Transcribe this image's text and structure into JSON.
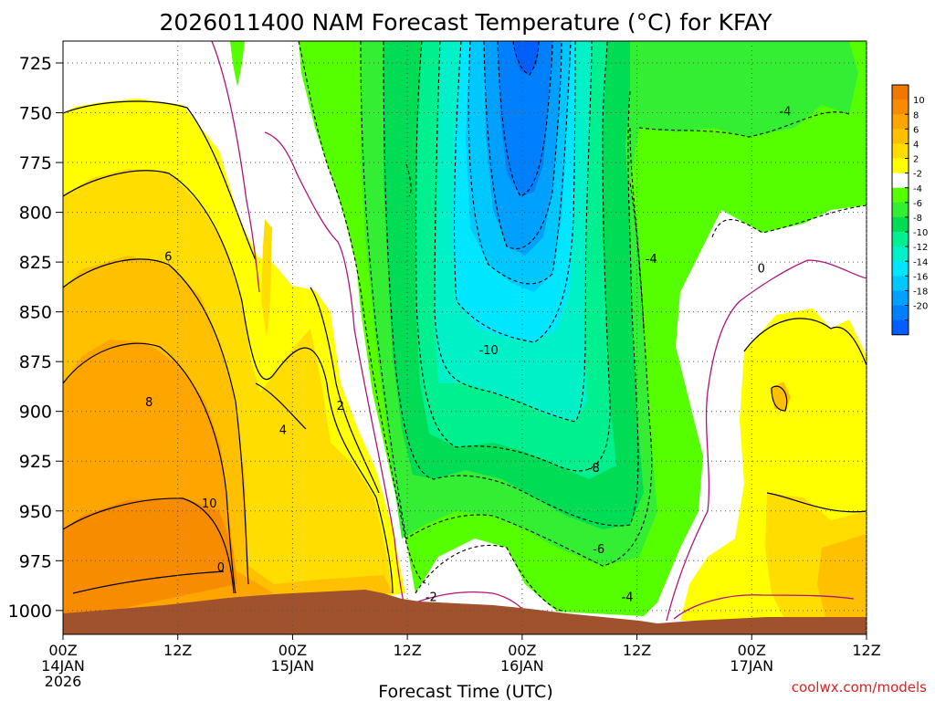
{
  "chart_data": {
    "type": "heatmap",
    "title": "2026011400 NAM Forecast Temperature (°C) for KFAY",
    "xlabel": "Forecast Time (UTC)",
    "ylabel": "",
    "credit": "coolwx.com/models",
    "y_scale": "pressure (reversed, hPa)",
    "ylim": [
      1012,
      714
    ],
    "y_ticks": [
      725,
      750,
      775,
      800,
      825,
      850,
      875,
      900,
      925,
      950,
      975,
      1000
    ],
    "x_ticks": [
      {
        "hour": 0,
        "label": "00Z",
        "sub": [
          "14JAN",
          "2026"
        ]
      },
      {
        "hour": 12,
        "label": "12Z",
        "sub": []
      },
      {
        "hour": 24,
        "label": "00Z",
        "sub": [
          "15JAN"
        ]
      },
      {
        "hour": 36,
        "label": "12Z",
        "sub": []
      },
      {
        "hour": 48,
        "label": "00Z",
        "sub": [
          "16JAN"
        ]
      },
      {
        "hour": 60,
        "label": "12Z",
        "sub": []
      },
      {
        "hour": 72,
        "label": "00Z",
        "sub": [
          "17JAN"
        ]
      },
      {
        "hour": 84,
        "label": "12Z",
        "sub": []
      }
    ],
    "grid": true,
    "colorbar": {
      "labels": [
        "10",
        "8",
        "6",
        "4",
        "2",
        "-2",
        "-4",
        "-6",
        "-8",
        "-10",
        "-12",
        "-14",
        "-16",
        "-18",
        "-20"
      ],
      "colors": [
        "#f07800",
        "#f78c00",
        "#ffa500",
        "#ffc000",
        "#ffdd00",
        "#ffff00",
        "#ffffff",
        "#55ff00",
        "#33ee33",
        "#00dd55",
        "#00f090",
        "#00f0c8",
        "#00e6ff",
        "#00c8ff",
        "#00a0ff",
        "#0080ff",
        "#0060ff"
      ]
    },
    "contour_labels": [
      {
        "text": "6",
        "hour": 11,
        "p": 822
      },
      {
        "text": "8",
        "hour": 9,
        "p": 895
      },
      {
        "text": "10",
        "hour": 15.3,
        "p": 946
      },
      {
        "text": "4",
        "hour": 23,
        "p": 909
      },
      {
        "text": "2",
        "hour": 29,
        "p": 897
      },
      {
        "text": "-2",
        "hour": 38.5,
        "p": 993
      },
      {
        "text": "-10",
        "hour": 44.5,
        "p": 869
      },
      {
        "text": "-8",
        "hour": 55.5,
        "p": 928
      },
      {
        "text": "-6",
        "hour": 56,
        "p": 969
      },
      {
        "text": "-4",
        "hour": 59,
        "p": 993
      },
      {
        "text": "-4",
        "hour": 61.5,
        "p": 823
      },
      {
        "text": "0",
        "hour": 73,
        "p": 828
      },
      {
        "text": "-4",
        "hour": 75.5,
        "p": 749
      },
      {
        "text": "0",
        "hour": 16.5,
        "p": 978
      }
    ]
  }
}
